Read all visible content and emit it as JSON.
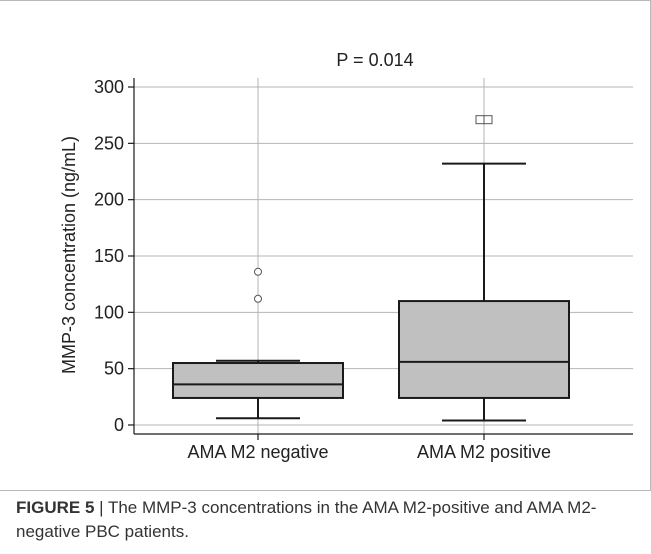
{
  "chart_data": {
    "type": "box",
    "title": "P = 0.014",
    "xlabel": "",
    "ylabel": "MMP-3 concentration (ng/mL)",
    "ylim": [
      -8,
      308
    ],
    "yticks": [
      0,
      50,
      100,
      150,
      200,
      250,
      300
    ],
    "grid": true,
    "categories": [
      "AMA M2 negative",
      "AMA M2 positive"
    ],
    "boxes": [
      {
        "category": "AMA M2 negative",
        "whisker_low": 6,
        "q1": 24,
        "median": 36,
        "q3": 55,
        "whisker_high": 57,
        "outliers": [
          112,
          136
        ],
        "outlier_marker": "circle"
      },
      {
        "category": "AMA M2 positive",
        "whisker_low": 4,
        "q1": 24,
        "median": 56,
        "q3": 110,
        "whisker_high": 232,
        "outliers": [
          271,
          271
        ],
        "outlier_marker": "square"
      }
    ],
    "colors": {
      "box_fill": "#c0c0c0",
      "stroke": "#1a1a1a",
      "grid": "#b5b5b5"
    }
  },
  "caption": {
    "label": "FIGURE 5",
    "separator": " | ",
    "text": "The MMP-3 concentrations in the AMA M2-positive and AMA M2-negative PBC patients."
  }
}
